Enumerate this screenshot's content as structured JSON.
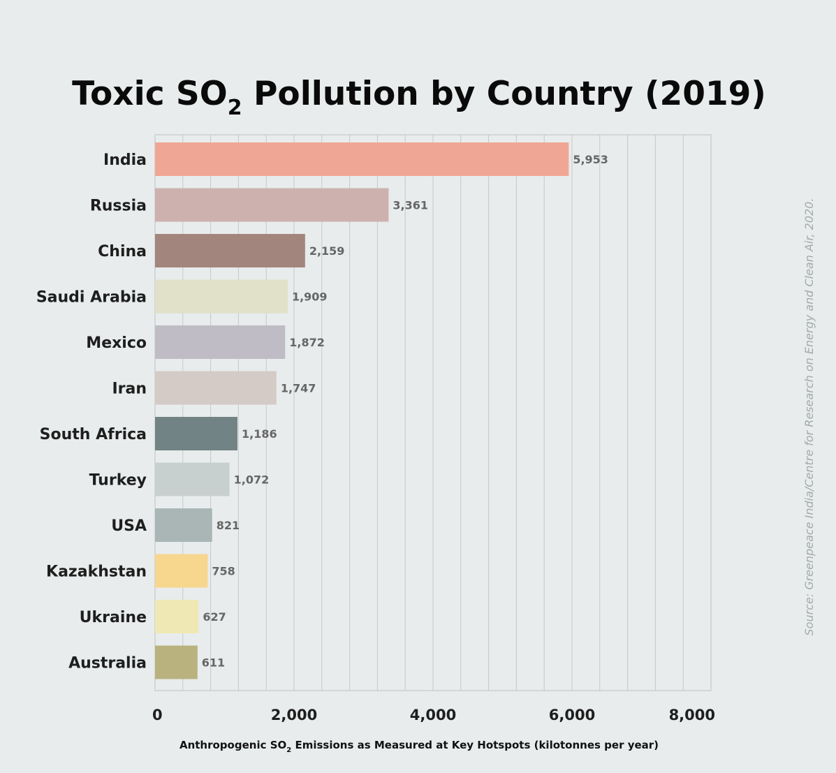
{
  "chart_data": {
    "type": "bar",
    "orientation": "horizontal",
    "title": {
      "prefix": "Toxic SO",
      "subscript": "2",
      "suffix": " Pollution by Country (2019)"
    },
    "xlabel": {
      "prefix": "Anthropogenic SO",
      "subscript": "2",
      "suffix": " Emissions as Measured at Key Hotspots (kilotonnes per year)"
    },
    "source": "Source: Greenpeace India/Centre for Research on Energy and Clean Air, 2020.",
    "categories": [
      "India",
      "Russia",
      "China",
      "Saudi Arabia",
      "Mexico",
      "Iran",
      "South Africa",
      "Turkey",
      "USA",
      "Kazakhstan",
      "Ukraine",
      "Australia"
    ],
    "values": [
      5953,
      3361,
      2159,
      1909,
      1872,
      1747,
      1186,
      1072,
      821,
      758,
      627,
      611
    ],
    "value_labels": [
      "5,953",
      "3,361",
      "2,159",
      "1,909",
      "1,872",
      "1,747",
      "1,186",
      "1,072",
      "821",
      "758",
      "627",
      "611"
    ],
    "colors": [
      "#f0a695",
      "#cdb1ae",
      "#a2857c",
      "#e1e0c8",
      "#bfbcc6",
      "#d4cbc7",
      "#728385",
      "#c8d0cf",
      "#a9b6b5",
      "#f7d68e",
      "#f0e8b4",
      "#b9b27f"
    ],
    "xlim": [
      0,
      8000
    ],
    "xticks": [
      0,
      2000,
      4000,
      6000,
      8000
    ],
    "xtick_labels": [
      "0",
      "2,000",
      "4,000",
      "6,000",
      "8,000"
    ],
    "minor_step": 400,
    "grid": true
  }
}
